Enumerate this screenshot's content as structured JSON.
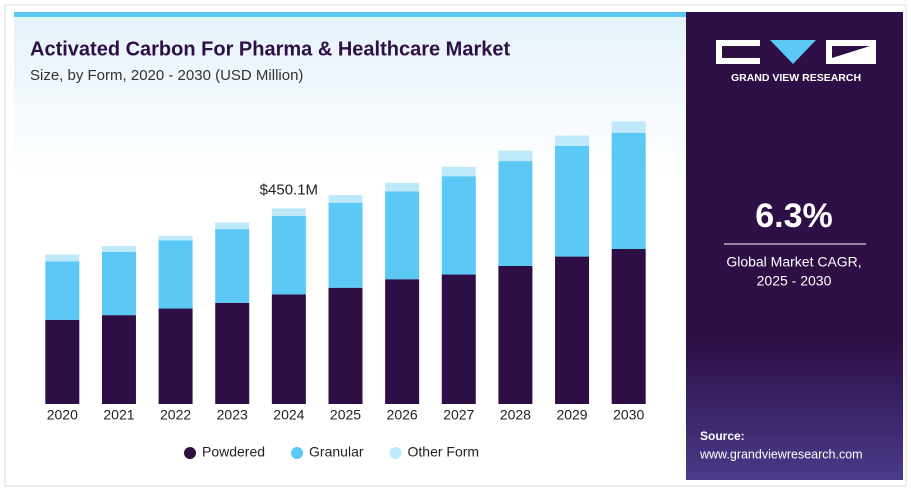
{
  "chart_data": {
    "type": "stacked-bar",
    "title": "Activated Carbon For Pharma & Healthcare Market",
    "subtitle": "Size, by Form, 2020 - 2030 (USD Million)",
    "categories": [
      "2020",
      "2021",
      "2022",
      "2023",
      "2024",
      "2025",
      "2026",
      "2027",
      "2028",
      "2029",
      "2030"
    ],
    "series": [
      {
        "name": "Powdered",
        "color": "#2e0f45",
        "values": [
          193.5,
          204.4,
          219.6,
          232.6,
          252.2,
          267.4,
          287.0,
          297.8,
          317.4,
          339.1,
          356.5
        ]
      },
      {
        "name": "Granular",
        "color": "#5bc8f5",
        "values": [
          134.8,
          145.7,
          156.5,
          169.6,
          180.4,
          195.7,
          202.2,
          226.1,
          241.3,
          254.4,
          267.4
        ]
      },
      {
        "name": "Other Form",
        "color": "#bde9fb",
        "values": [
          15.2,
          13.0,
          10.9,
          15.2,
          17.5,
          17.4,
          19.6,
          21.7,
          23.9,
          23.9,
          26.1
        ]
      }
    ],
    "ylim": [
      0,
      1000
    ],
    "annotations": [
      {
        "x": "2024",
        "text": "$450.1M"
      }
    ],
    "legend": "bottom"
  },
  "sidebar": {
    "brand": "GRAND VIEW RESEARCH",
    "cagr": "6.3%",
    "cagr_label": "Global Market CAGR,",
    "cagr_period": "2025 - 2030",
    "source_label": "Source:",
    "source_url": "www.grandviewresearch.com"
  }
}
